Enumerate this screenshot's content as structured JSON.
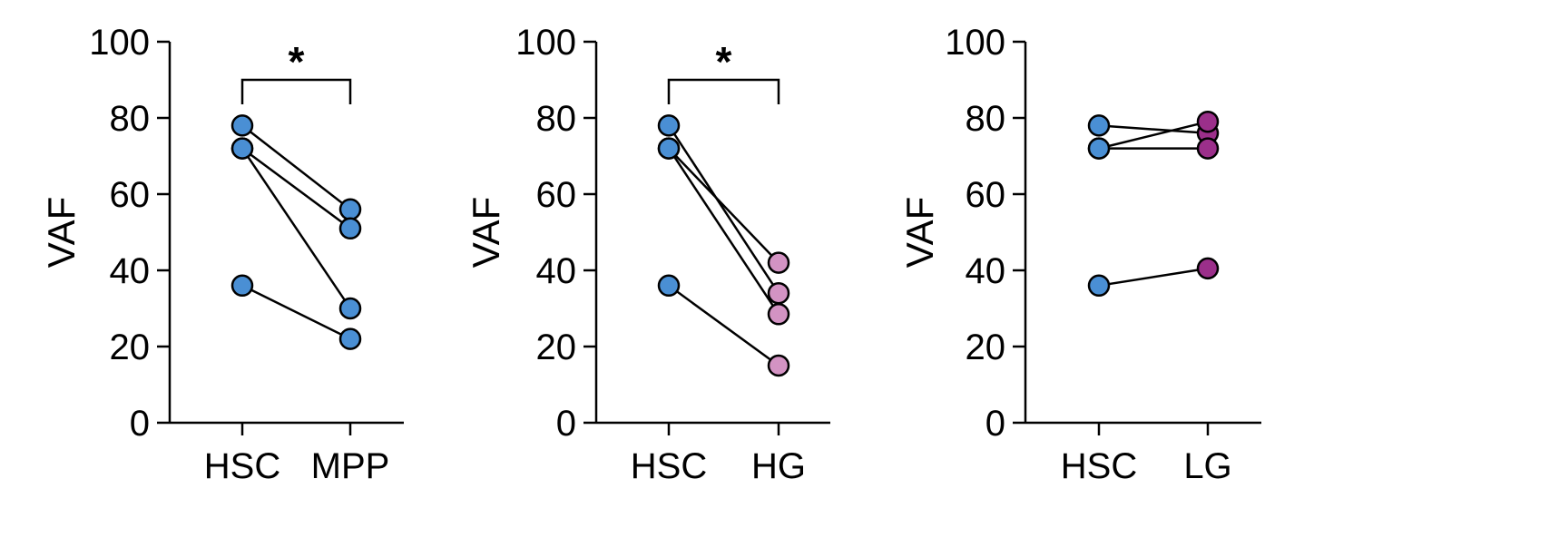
{
  "colors": {
    "hsc": "#4a8fd4",
    "mpp": "#4a8fd4",
    "hg": "#d393c3",
    "lg": "#9b2f8a"
  },
  "chart_data": [
    {
      "type": "scatter",
      "title": "",
      "xlabel": "",
      "ylabel": "VAF",
      "ylim": [
        0,
        100
      ],
      "yticks": [
        "0",
        "20",
        "40",
        "60",
        "80",
        "100"
      ],
      "categories": [
        "HSC",
        "MPP"
      ],
      "pairs": [
        [
          78,
          56
        ],
        [
          72,
          51
        ],
        [
          72,
          30
        ],
        [
          36,
          22
        ]
      ],
      "point_colors": [
        "#4a8fd4",
        "#4a8fd4"
      ],
      "significance": "*"
    },
    {
      "type": "scatter",
      "title": "",
      "xlabel": "",
      "ylabel": "VAF",
      "ylim": [
        0,
        100
      ],
      "yticks": [
        "0",
        "20",
        "40",
        "60",
        "80",
        "100"
      ],
      "categories": [
        "HSC",
        "HG"
      ],
      "pairs": [
        [
          78,
          34
        ],
        [
          72,
          42
        ],
        [
          72,
          28.5
        ],
        [
          36,
          15
        ]
      ],
      "point_colors": [
        "#4a8fd4",
        "#d393c3"
      ],
      "significance": "*"
    },
    {
      "type": "scatter",
      "title": "",
      "xlabel": "",
      "ylabel": "VAF",
      "ylim": [
        0,
        100
      ],
      "yticks": [
        "0",
        "20",
        "40",
        "60",
        "80",
        "100"
      ],
      "categories": [
        "HSC",
        "LG"
      ],
      "pairs": [
        [
          78,
          76
        ],
        [
          72,
          79
        ],
        [
          72,
          72
        ],
        [
          36,
          40.5
        ]
      ],
      "point_colors": [
        "#4a8fd4",
        "#9b2f8a"
      ],
      "significance": ""
    }
  ]
}
